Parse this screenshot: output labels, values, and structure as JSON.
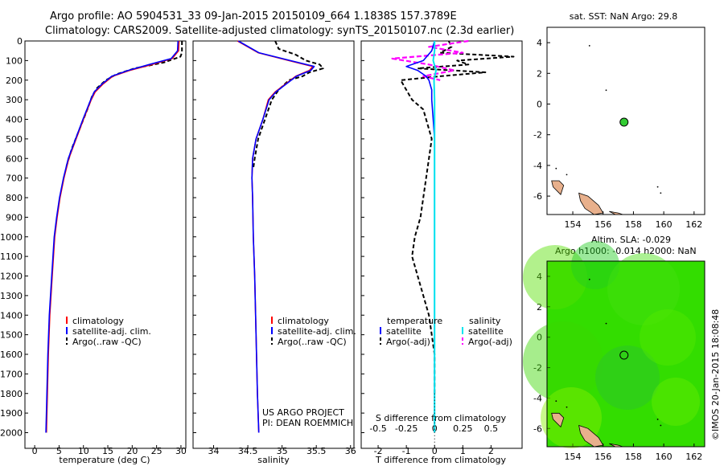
{
  "header": {
    "line1": "Argo profile: AO 5904531_33 09-Jan-2015 20150109_664 1.1838S 157.3789E",
    "line2": "Climatology: CARS2009. Satellite-adjusted climatology: synTS_20150107.nc (2.3d earlier)"
  },
  "colors": {
    "climatology": "#ff0000",
    "satellite": "#0000ff",
    "argo": "#000000",
    "salinity_sat": "#00e5ee",
    "salinity_argo": "#ff00ff",
    "sst_marker": "#33cc33",
    "land": "#e8b08c",
    "sla_background": "#33dd00"
  },
  "chart_data": [
    {
      "id": "temperature",
      "type": "line",
      "xlabel": "temperature (deg C)",
      "xticks": [
        "0",
        "5",
        "10",
        "15",
        "20",
        "25",
        "30"
      ],
      "xlim": [
        -2,
        31
      ],
      "ylim": [
        0,
        2080
      ],
      "yticks": [
        "0",
        "100",
        "200",
        "300",
        "400",
        "500",
        "600",
        "700",
        "800",
        "900",
        "1000",
        "1100",
        "1200",
        "1300",
        "1400",
        "1500",
        "1600",
        "1700",
        "1800",
        "1900",
        "2000"
      ],
      "legend": [
        "climatology",
        "satellite-adj. clim.",
        "Argo(..raw -QC)"
      ],
      "series": [
        {
          "name": "climatology",
          "y": [
            0,
            50,
            90,
            120,
            150,
            180,
            220,
            260,
            300,
            400,
            500,
            600,
            700,
            800,
            900,
            1000,
            1200,
            1400,
            1600,
            1800,
            2000
          ],
          "x": [
            29.6,
            29.5,
            28.2,
            24.0,
            19.5,
            16.0,
            14.0,
            12.4,
            11.6,
            10.0,
            8.5,
            7.0,
            6.0,
            5.2,
            4.6,
            4.1,
            3.6,
            3.1,
            2.8,
            2.6,
            2.4
          ]
        },
        {
          "name": "satellite-adj. clim.",
          "y": [
            0,
            50,
            90,
            120,
            150,
            180,
            220,
            260,
            300,
            400,
            500,
            600,
            700,
            800,
            900,
            1000,
            1200,
            1400,
            1600,
            1800,
            2000
          ],
          "x": [
            29.4,
            29.3,
            28.0,
            23.5,
            19.2,
            15.8,
            13.8,
            12.2,
            11.5,
            9.9,
            8.4,
            6.9,
            5.9,
            5.1,
            4.5,
            4.0,
            3.5,
            3.0,
            2.7,
            2.5,
            2.3
          ]
        },
        {
          "name": "Argo(..raw -QC)",
          "y": [
            0,
            60,
            80,
            110,
            140,
            170,
            200,
            240,
            280,
            350,
            450,
            550,
            650
          ],
          "x": [
            30.2,
            30.2,
            29.9,
            26.5,
            20.5,
            16.8,
            14.6,
            12.8,
            11.8,
            10.8,
            9.2,
            7.6,
            6.4
          ]
        }
      ]
    },
    {
      "id": "salinity",
      "type": "line",
      "xlabel": "salinity",
      "xticks": [
        "34",
        "34.5",
        "35",
        "35.5",
        "36"
      ],
      "xlim": [
        33.7,
        36.05
      ],
      "ylim": [
        0,
        2080
      ],
      "legend": [
        "climatology",
        "satellite-adj. clim.",
        "Argo(..raw -QC)"
      ],
      "annotation": [
        "US ARGO PROJECT",
        "PI: DEAN ROEMMICH"
      ],
      "series": [
        {
          "name": "climatology",
          "y": [
            0,
            60,
            100,
            130,
            150,
            180,
            220,
            260,
            300,
            400,
            500,
            600,
            700,
            800,
            1000,
            1200,
            1500,
            1800,
            2000
          ],
          "x": [
            34.35,
            34.65,
            35.1,
            35.45,
            35.4,
            35.2,
            35.05,
            34.9,
            34.8,
            34.72,
            34.62,
            34.57,
            34.56,
            34.57,
            34.58,
            34.6,
            34.62,
            34.64,
            34.66
          ]
        },
        {
          "name": "satellite-adj. clim.",
          "y": [
            0,
            60,
            100,
            130,
            150,
            180,
            220,
            260,
            300,
            400,
            500,
            600,
            700,
            800,
            1000,
            1200,
            1500,
            1800,
            2000
          ],
          "x": [
            34.36,
            34.66,
            35.12,
            35.47,
            35.42,
            35.21,
            35.06,
            34.91,
            34.81,
            34.72,
            34.62,
            34.57,
            34.56,
            34.57,
            34.58,
            34.6,
            34.62,
            34.64,
            34.66
          ]
        },
        {
          "name": "Argo(..raw -QC)",
          "y": [
            0,
            40,
            70,
            100,
            120,
            140,
            150,
            160,
            180,
            200,
            250,
            300,
            400,
            500,
            600,
            650
          ],
          "x": [
            34.9,
            34.95,
            35.2,
            35.35,
            35.55,
            35.6,
            35.5,
            35.4,
            35.3,
            35.1,
            34.95,
            34.85,
            34.75,
            34.65,
            34.6,
            34.58
          ]
        }
      ]
    },
    {
      "id": "difference",
      "type": "line",
      "xlabel": "T difference from climatology",
      "xlabel_top": "S difference from climatology",
      "xticks": [
        "-2",
        "-1",
        "0",
        "1",
        "2"
      ],
      "xticks_top": [
        "-0.5",
        "-0.25",
        "0",
        "0.25",
        "0.5"
      ],
      "xlim": [
        -2.6,
        3.1
      ],
      "ylim": [
        0,
        2080
      ],
      "legend_temperature": [
        "temperature",
        "satellite",
        "Argo(-adj)"
      ],
      "legend_salinity": [
        "salinity",
        "satellite",
        "Argo(-adj)"
      ],
      "series": [
        {
          "name": "temperature satellite",
          "y": [
            0,
            50,
            100,
            130,
            150,
            180,
            200,
            250,
            300,
            400,
            500,
            700,
            1000,
            1500,
            2000
          ],
          "x": [
            0,
            -0.1,
            -0.4,
            -1.0,
            -0.6,
            -0.3,
            -0.2,
            -0.1,
            -0.1,
            -0.05,
            0,
            0,
            0,
            0,
            0
          ]
        },
        {
          "name": "temperature Argo(-adj)",
          "y": [
            0,
            30,
            60,
            80,
            100,
            120,
            140,
            160,
            180,
            200,
            250,
            300,
            350,
            400,
            500,
            600,
            700,
            800,
            900,
            1000,
            1100,
            1200,
            1300,
            1400,
            1500,
            1600,
            1700,
            1800
          ],
          "x": [
            0.5,
            0.6,
            0.2,
            2.8,
            0.8,
            1.2,
            -0.6,
            1.8,
            0.2,
            -1.2,
            -1.0,
            -0.8,
            -0.4,
            -0.3,
            -0.1,
            -0.2,
            -0.3,
            -0.4,
            -0.5,
            -0.7,
            -0.8,
            -0.6,
            -0.4,
            -0.2,
            -0.1,
            0,
            0,
            0
          ]
        },
        {
          "name": "salinity satellite",
          "y": [
            0,
            50,
            100,
            150,
            200,
            300,
            500,
            1000,
            1500,
            2000
          ],
          "x": [
            0,
            0,
            -0.05,
            0.05,
            -0.02,
            0,
            0,
            0,
            0,
            0
          ]
        },
        {
          "name": "salinity Argo(-adj)",
          "y": [
            0,
            30,
            60,
            90,
            120,
            150,
            180,
            200
          ],
          "x": [
            1.2,
            -0.2,
            1.0,
            -1.5,
            -0.2,
            0.7,
            -0.4,
            0.2
          ]
        }
      ]
    },
    {
      "id": "sst_map",
      "type": "scatter",
      "title": "sat. SST: NaN Argo: 29.8",
      "xticks": [
        "154",
        "156",
        "158",
        "160",
        "162"
      ],
      "yticks": [
        "4",
        "2",
        "0",
        "-2",
        "-4",
        "-6"
      ],
      "xlim": [
        152.3,
        162.7
      ],
      "ylim": [
        -7.2,
        5
      ],
      "points": [
        {
          "lon": 157.38,
          "lat": -1.18
        }
      ]
    },
    {
      "id": "sla_map",
      "type": "heatmap",
      "title1": "Altim. SLA: -0.029",
      "title2": "Argo h1000: -0.014 h2000: NaN",
      "xticks": [
        "154",
        "156",
        "158",
        "160",
        "162"
      ],
      "yticks": [
        "4",
        "2",
        "0",
        "-2",
        "-4",
        "-6"
      ],
      "xlim": [
        152.3,
        162.7
      ],
      "ylim": [
        -7.2,
        5
      ],
      "points": [
        {
          "lon": 157.38,
          "lat": -1.18
        }
      ]
    }
  ],
  "watermark": "©IMOS 20-Jan-2015 18:08:48"
}
